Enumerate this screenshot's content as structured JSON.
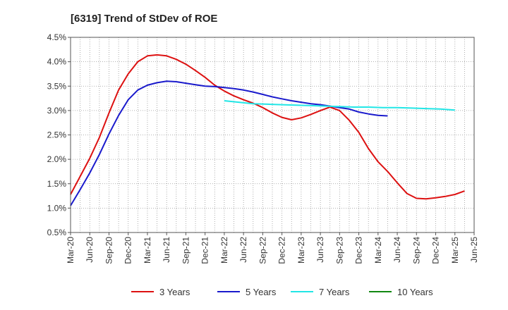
{
  "chart_data": {
    "type": "line",
    "title": "[6319]  Trend of StDev of ROE",
    "xlabel": "",
    "ylabel": "",
    "x_ticks": [
      "Mar-20",
      "Jun-20",
      "Sep-20",
      "Dec-20",
      "Mar-21",
      "Jun-21",
      "Sep-21",
      "Dec-21",
      "Mar-22",
      "Jun-22",
      "Sep-22",
      "Dec-22",
      "Mar-23",
      "Jun-23",
      "Sep-23",
      "Dec-23",
      "Mar-24",
      "Jun-24",
      "Sep-24",
      "Dec-24",
      "Mar-25",
      "Jun-25"
    ],
    "y_ticks": [
      "0.5%",
      "1.0%",
      "1.5%",
      "2.0%",
      "2.5%",
      "3.0%",
      "3.5%",
      "4.0%",
      "4.5%"
    ],
    "ylim": [
      0.5,
      4.5
    ],
    "grid": true,
    "legend_position": "bottom",
    "series": [
      {
        "name": "3 Years",
        "color": "#dd1111",
        "values": [
          [
            0,
            1.28
          ],
          [
            1,
            1.65
          ],
          [
            2,
            2.02
          ],
          [
            3,
            2.45
          ],
          [
            4,
            2.95
          ],
          [
            5,
            3.42
          ],
          [
            6,
            3.75
          ],
          [
            7,
            4.0
          ],
          [
            8,
            4.12
          ],
          [
            9,
            4.14
          ],
          [
            10,
            4.12
          ],
          [
            11,
            4.05
          ],
          [
            12,
            3.95
          ],
          [
            13,
            3.82
          ],
          [
            14,
            3.68
          ],
          [
            15,
            3.52
          ],
          [
            16,
            3.4
          ],
          [
            17,
            3.3
          ],
          [
            18,
            3.22
          ],
          [
            19,
            3.15
          ],
          [
            20,
            3.06
          ],
          [
            21,
            2.95
          ],
          [
            22,
            2.86
          ],
          [
            23,
            2.81
          ],
          [
            24,
            2.85
          ],
          [
            25,
            2.92
          ],
          [
            26,
            3.0
          ],
          [
            27,
            3.07
          ],
          [
            28,
            3.0
          ],
          [
            29,
            2.8
          ],
          [
            30,
            2.55
          ],
          [
            31,
            2.22
          ],
          [
            32,
            1.95
          ],
          [
            33,
            1.75
          ],
          [
            34,
            1.52
          ],
          [
            35,
            1.3
          ],
          [
            36,
            1.2
          ],
          [
            37,
            1.19
          ],
          [
            38,
            1.21
          ],
          [
            39,
            1.24
          ],
          [
            40,
            1.28
          ],
          [
            41,
            1.35
          ]
        ]
      },
      {
        "name": "5 Years",
        "color": "#1a1acc",
        "values": [
          [
            0,
            1.05
          ],
          [
            1,
            1.38
          ],
          [
            2,
            1.72
          ],
          [
            3,
            2.1
          ],
          [
            4,
            2.52
          ],
          [
            5,
            2.9
          ],
          [
            6,
            3.22
          ],
          [
            7,
            3.42
          ],
          [
            8,
            3.52
          ],
          [
            9,
            3.57
          ],
          [
            10,
            3.6
          ],
          [
            11,
            3.59
          ],
          [
            12,
            3.56
          ],
          [
            13,
            3.53
          ],
          [
            14,
            3.5
          ],
          [
            15,
            3.49
          ],
          [
            16,
            3.47
          ],
          [
            17,
            3.45
          ],
          [
            18,
            3.42
          ],
          [
            19,
            3.38
          ],
          [
            20,
            3.33
          ],
          [
            21,
            3.28
          ],
          [
            22,
            3.24
          ],
          [
            23,
            3.2
          ],
          [
            24,
            3.17
          ],
          [
            25,
            3.14
          ],
          [
            26,
            3.12
          ],
          [
            27,
            3.09
          ],
          [
            28,
            3.06
          ],
          [
            29,
            3.03
          ],
          [
            30,
            2.97
          ],
          [
            31,
            2.93
          ],
          [
            32,
            2.9
          ],
          [
            33,
            2.89
          ]
        ]
      },
      {
        "name": "7 Years",
        "color": "#22e6e6",
        "values": [
          [
            0,
            3.2
          ],
          [
            1,
            3.17
          ],
          [
            2,
            3.14
          ],
          [
            3,
            3.13
          ],
          [
            4,
            3.12
          ],
          [
            5,
            3.11
          ],
          [
            6,
            3.1
          ],
          [
            7,
            3.09
          ],
          [
            8,
            3.08
          ],
          [
            9,
            3.07
          ],
          [
            10,
            3.07
          ],
          [
            11,
            3.06
          ],
          [
            12,
            3.06
          ],
          [
            13,
            3.05
          ],
          [
            14,
            3.04
          ],
          [
            15,
            3.03
          ],
          [
            16,
            3.01
          ]
        ]
      },
      {
        "name": "10 Years",
        "color": "#118811",
        "values": []
      }
    ],
    "series_start_quarter": [
      0,
      0,
      8,
      0
    ],
    "series_step_quarters": [
      0.5,
      0.5,
      0.75,
      0.5
    ]
  }
}
